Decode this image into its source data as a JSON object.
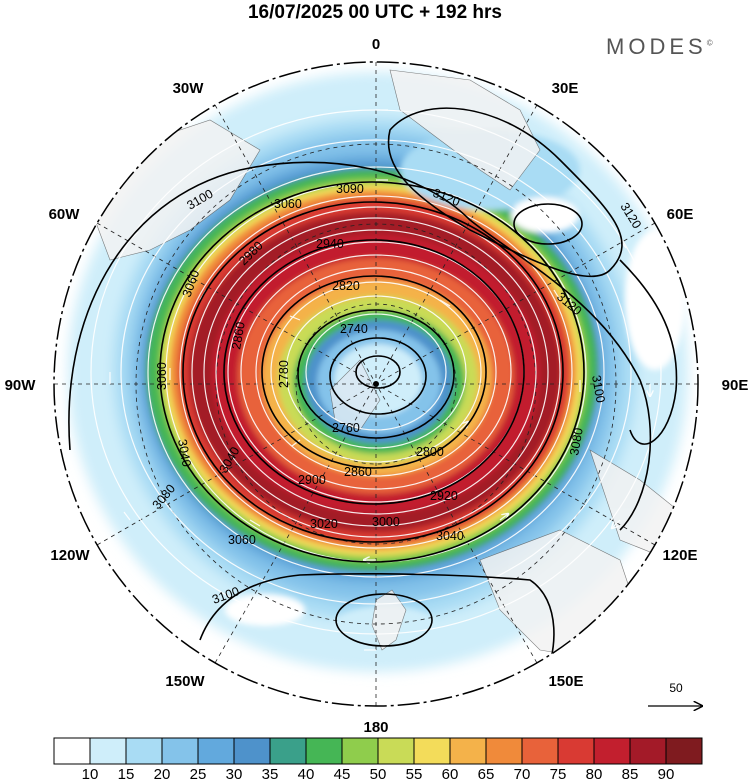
{
  "header": {
    "title": "16/07/2025  00 UTC  + 192 hrs",
    "brand": "MODES",
    "brand_mark": "©"
  },
  "map": {
    "projection": "south polar stereographic",
    "longitude_labels": {
      "top": "0",
      "top_right": "30E",
      "right_upper": "60E",
      "right": "90E",
      "right_lower": "120E",
      "bottom_right": "150E",
      "bottom": "180",
      "bottom_left": "150W",
      "left_lower": "120W",
      "left": "90W",
      "left_upper": "60W",
      "top_left": "30W"
    },
    "contour_labels": [
      "3090",
      "3120",
      "3120",
      "3100",
      "3060",
      "3060",
      "2980",
      "2940",
      "2820",
      "2740",
      "2860",
      "3120",
      "3100",
      "3060",
      "3040",
      "2760",
      "2780",
      "2800",
      "3080",
      "3080",
      "3040",
      "2900",
      "2860",
      "2920",
      "3020",
      "3000",
      "3060",
      "3100",
      "3040"
    ],
    "reference_vector": {
      "value": "50"
    }
  },
  "colorbar": {
    "ticks": [
      "10",
      "15",
      "20",
      "25",
      "30",
      "35",
      "40",
      "45",
      "50",
      "55",
      "60",
      "65",
      "70",
      "75",
      "80",
      "85",
      "90"
    ],
    "colors": [
      "#ffffff",
      "#cfeefa",
      "#a9dcf4",
      "#84c3ea",
      "#62a9dd",
      "#4e92cb",
      "#3aa08a",
      "#45b655",
      "#8fcd4c",
      "#c9db57",
      "#f3dc5a",
      "#f4b24a",
      "#f08a3a",
      "#e8623a",
      "#d93a33",
      "#c21f2e",
      "#a31a28",
      "#7f1b1f"
    ]
  }
}
